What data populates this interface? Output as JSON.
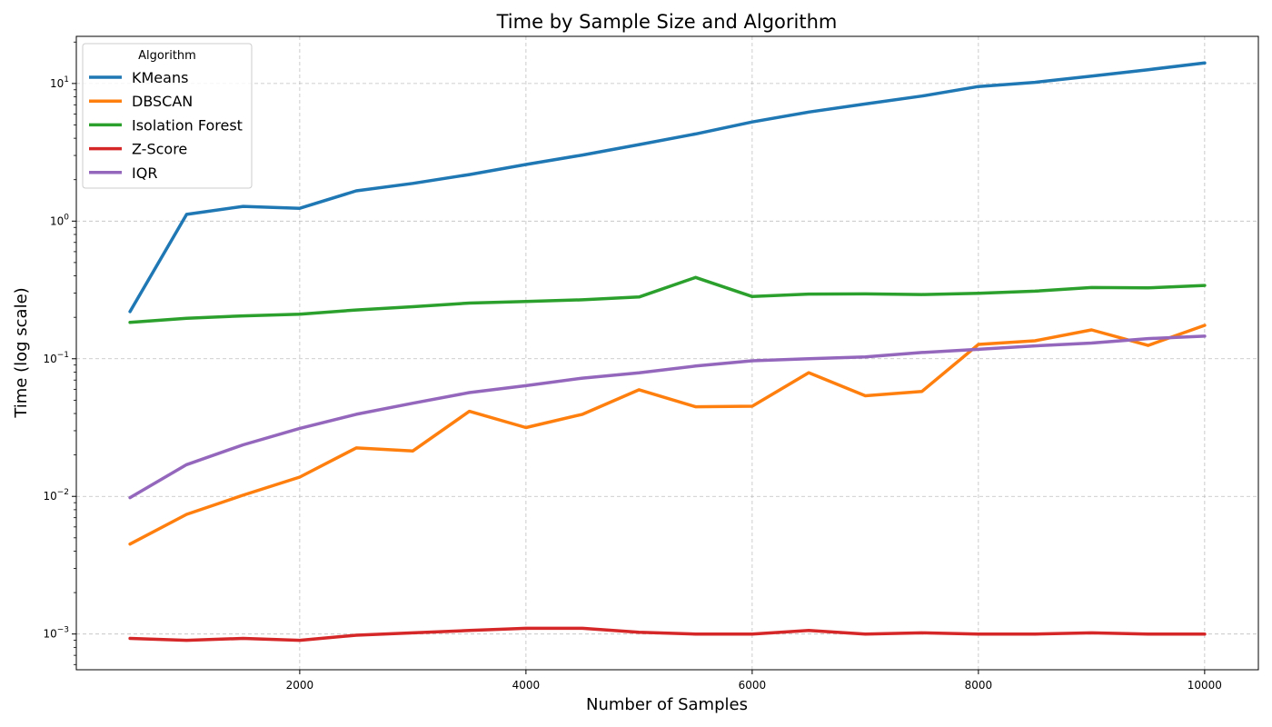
{
  "chart_data": {
    "type": "line",
    "title": "Time by Sample Size and Algorithm",
    "xlabel": "Number of Samples",
    "ylabel": "Time (log scale)",
    "yscale": "log",
    "grid": true,
    "legend": {
      "title": "Algorithm",
      "placement": "top-left"
    },
    "xlim": [
      25,
      10475
    ],
    "ylim": [
      0.00055,
      22
    ],
    "x_ticks": [
      2000,
      4000,
      6000,
      8000,
      10000
    ],
    "y_ticks": [
      {
        "value": 0.001,
        "base": "10",
        "exp": "−3"
      },
      {
        "value": 0.01,
        "base": "10",
        "exp": "−2"
      },
      {
        "value": 0.1,
        "base": "10",
        "exp": "−1"
      },
      {
        "value": 1,
        "base": "10",
        "exp": "0"
      },
      {
        "value": 10,
        "base": "10",
        "exp": "1"
      }
    ],
    "x": [
      500,
      1000,
      1500,
      2000,
      2500,
      3000,
      3500,
      4000,
      4500,
      5000,
      5500,
      6000,
      6500,
      7000,
      7500,
      8000,
      8500,
      9000,
      9500,
      10000
    ],
    "series": [
      {
        "name": "KMeans",
        "color": "#1f77b4",
        "values": [
          0.22,
          1.12,
          1.28,
          1.24,
          1.66,
          1.88,
          2.18,
          2.58,
          3.02,
          3.6,
          4.3,
          5.25,
          6.2,
          7.1,
          8.1,
          9.5,
          10.2,
          11.3,
          12.6,
          14.1
        ]
      },
      {
        "name": "DBSCAN",
        "color": "#ff7f0e",
        "values": [
          0.0045,
          0.0074,
          0.0102,
          0.0138,
          0.0225,
          0.0214,
          0.0415,
          0.0316,
          0.0395,
          0.0595,
          0.0448,
          0.0452,
          0.0792,
          0.0538,
          0.0578,
          0.127,
          0.135,
          0.162,
          0.125,
          0.175
        ]
      },
      {
        "name": "Isolation Forest",
        "color": "#2ca02c",
        "values": [
          0.184,
          0.197,
          0.205,
          0.211,
          0.226,
          0.239,
          0.254,
          0.261,
          0.268,
          0.281,
          0.39,
          0.283,
          0.295,
          0.296,
          0.293,
          0.299,
          0.31,
          0.329,
          0.327,
          0.341
        ]
      },
      {
        "name": "Z-Score",
        "color": "#d62728",
        "values": [
          0.00093,
          0.0009,
          0.00093,
          0.0009,
          0.00098,
          0.00102,
          0.00106,
          0.0011,
          0.0011,
          0.00103,
          0.001,
          0.001,
          0.00106,
          0.001,
          0.00102,
          0.001,
          0.001,
          0.00102,
          0.001,
          0.001
        ]
      },
      {
        "name": "IQR",
        "color": "#9467bd",
        "values": [
          0.0098,
          0.017,
          0.0237,
          0.0312,
          0.0395,
          0.0475,
          0.0568,
          0.0637,
          0.0723,
          0.0791,
          0.0885,
          0.0967,
          0.1,
          0.103,
          0.111,
          0.117,
          0.124,
          0.13,
          0.14,
          0.146
        ]
      }
    ]
  }
}
